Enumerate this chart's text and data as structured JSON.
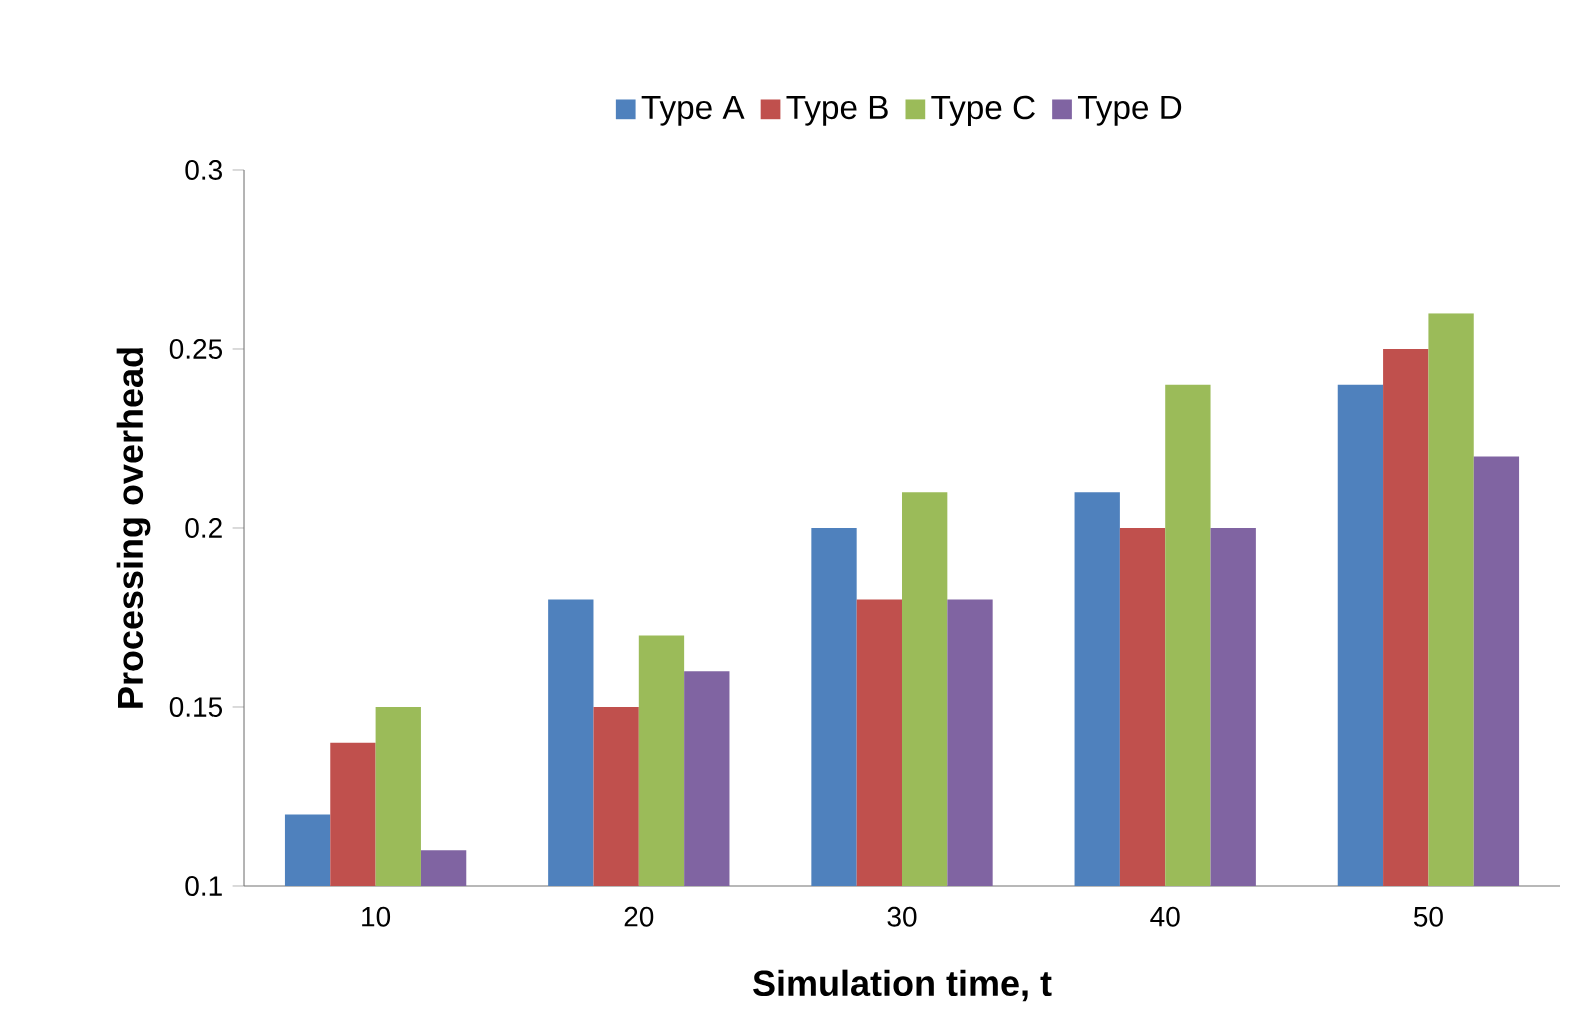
{
  "chart_data": {
    "type": "bar",
    "xlabel": "Simulation time, t",
    "ylabel": "Processing overhead",
    "categories": [
      "10",
      "20",
      "30",
      "40",
      "50"
    ],
    "series": [
      {
        "name": "Type A",
        "color": "#4f81bd",
        "values": [
          0.12,
          0.18,
          0.2,
          0.21,
          0.24
        ]
      },
      {
        "name": "Type B",
        "color": "#c0504d",
        "values": [
          0.14,
          0.15,
          0.18,
          0.2,
          0.25
        ]
      },
      {
        "name": "Type C",
        "color": "#9bbb59",
        "values": [
          0.15,
          0.17,
          0.21,
          0.24,
          0.26
        ]
      },
      {
        "name": "Type D",
        "color": "#8064a2",
        "values": [
          0.11,
          0.16,
          0.18,
          0.2,
          0.22
        ]
      }
    ],
    "ylim": [
      0.1,
      0.3
    ],
    "yticks": [
      0.1,
      0.15,
      0.2,
      0.25,
      0.3
    ],
    "legend": "top"
  }
}
